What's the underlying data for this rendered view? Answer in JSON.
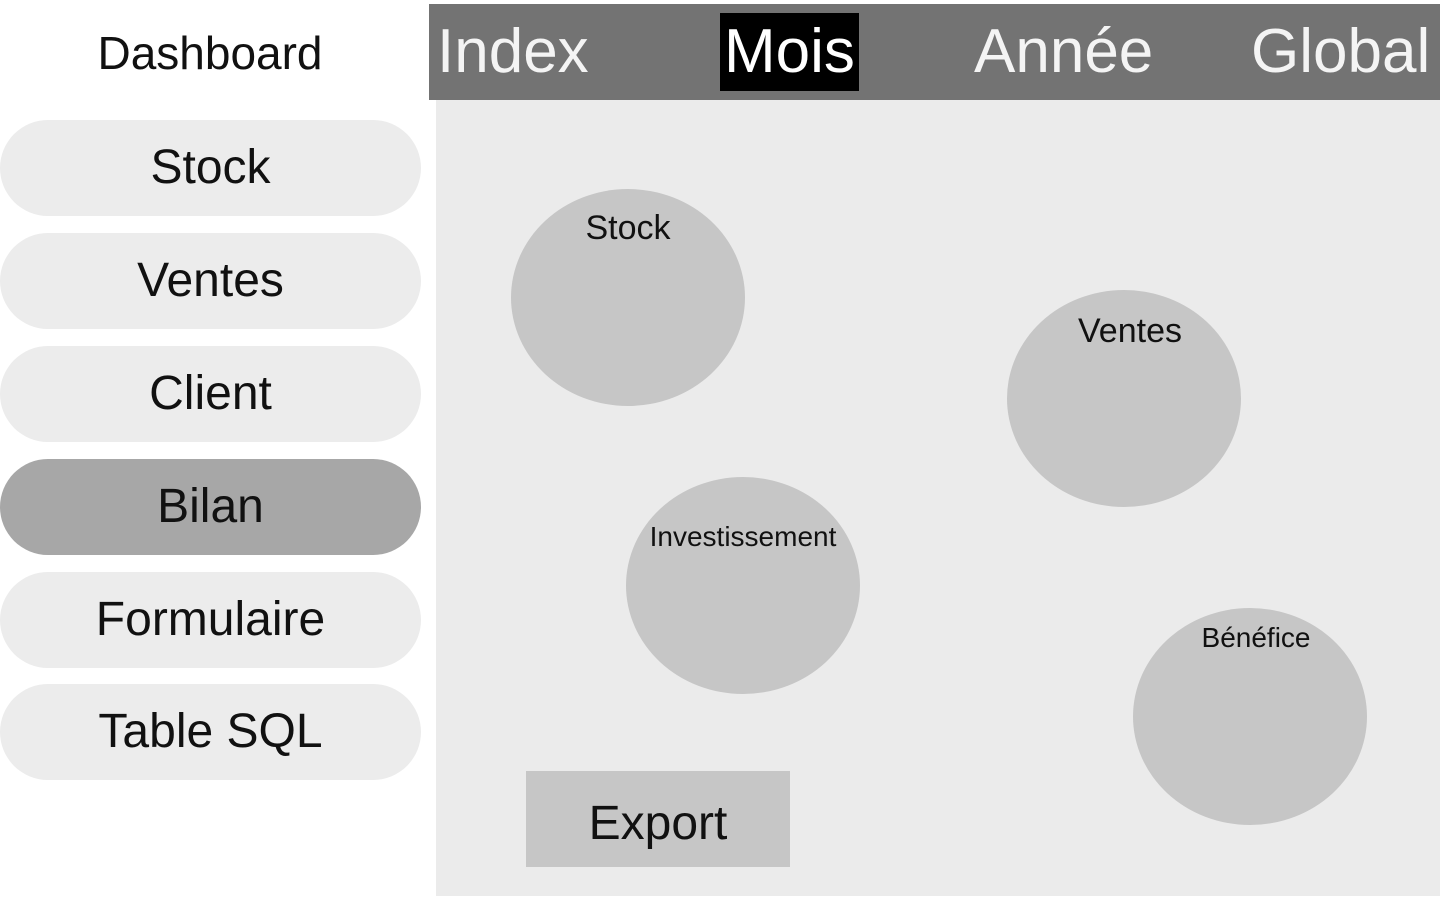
{
  "sidebar": {
    "title": "Dashboard",
    "items": [
      {
        "label": "Stock",
        "active": false
      },
      {
        "label": "Ventes",
        "active": false
      },
      {
        "label": "Client",
        "active": false
      },
      {
        "label": "Bilan",
        "active": true
      },
      {
        "label": "Formulaire",
        "active": false
      },
      {
        "label": "Table SQL",
        "active": false
      }
    ]
  },
  "tabs": [
    {
      "label": "Index",
      "active": false
    },
    {
      "label": "Mois",
      "active": true
    },
    {
      "label": "Année",
      "active": false
    },
    {
      "label": "Global",
      "active": false
    }
  ],
  "main": {
    "bubbles": [
      {
        "label": "Stock"
      },
      {
        "label": "Ventes"
      },
      {
        "label": "Investissement"
      },
      {
        "label": "Bénéfice"
      }
    ],
    "export_label": "Export"
  },
  "colors": {
    "topbar": "#737373",
    "active_tab": "#000000",
    "active_nav": "#a7a7a7",
    "nav_item": "#ececec",
    "panel": "#ebebeb",
    "bubble": "#c6c6c6"
  }
}
